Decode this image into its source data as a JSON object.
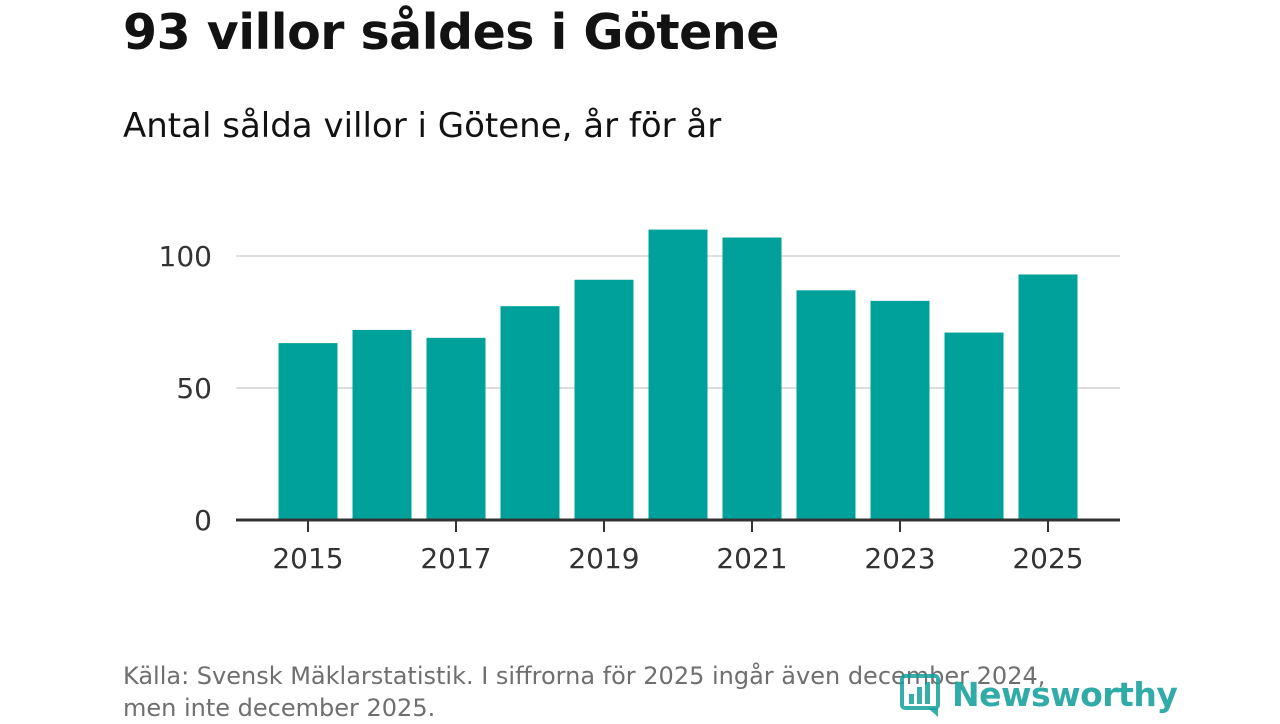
{
  "header": {
    "title": "93 villor såldes i Götene",
    "subtitle": "Antal sålda villor i Götene, år för år"
  },
  "footer": {
    "source_line1": "Källa: Svensk Mäklarstatistik. I siffrorna för 2025 ingår även december 2024,",
    "source_line2": "men inte december 2025.",
    "brand": "Newsworthy",
    "brand_icon": "bar-chart-logo-icon"
  },
  "colors": {
    "bar": "#00a19a",
    "grid": "#dddddd",
    "axis": "#333333",
    "brand": "#14a09d"
  },
  "chart_data": {
    "type": "bar",
    "title": "93 villor såldes i Götene",
    "subtitle": "Antal sålda villor i Götene, år för år",
    "xlabel": "",
    "ylabel": "",
    "categories": [
      "2015",
      "2016",
      "2017",
      "2018",
      "2019",
      "2020",
      "2021",
      "2022",
      "2023",
      "2024",
      "2025"
    ],
    "values": [
      67,
      72,
      69,
      81,
      91,
      110,
      107,
      87,
      83,
      71,
      93
    ],
    "x_tick_labels": [
      "2015",
      "2017",
      "2019",
      "2021",
      "2023",
      "2025"
    ],
    "y_ticks": [
      0,
      50,
      100
    ],
    "y_tick_labels": [
      "0",
      "50",
      "100"
    ],
    "ylim": [
      0,
      115
    ],
    "grid": true,
    "legend": "none"
  }
}
